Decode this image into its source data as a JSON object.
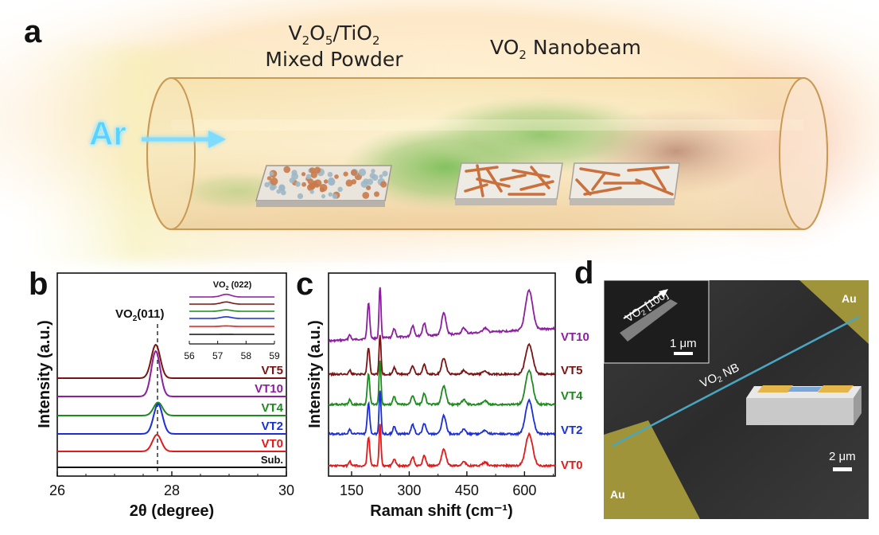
{
  "panel_a": {
    "letter": "a",
    "powder_label_line1_main": "V",
    "powder_label_line1_sub1": "2",
    "powder_label_line1_mid": "O",
    "powder_label_line1_sub2": "5",
    "powder_label_line1_tail": "/TiO",
    "powder_label_line1_sub3": "2",
    "powder_label_line2": "Mixed Powder",
    "nanobeam_label_main": "VO",
    "nanobeam_label_sub": "2",
    "nanobeam_label_tail": " Nanobeam",
    "gas_label": "Ar"
  },
  "panel_d": {
    "letter": "d",
    "au_top": "Au",
    "au_bottom": "Au",
    "nb_label_main": "VO",
    "nb_label_sub": "2",
    "nb_label_tail": " NB",
    "inset_dir_main": "VO",
    "inset_dir_sub": "2",
    "inset_dir_tail": " [100]",
    "inset_scale": "1 μm",
    "main_scale": "2 μm"
  },
  "colors": {
    "VT10": "#8b1f9e",
    "VT5": "#7a1414",
    "VT4": "#1f8a1f",
    "VT2": "#1c2fd6",
    "VT0": "#e01b1b",
    "Sub": "#111111"
  },
  "chart_data": [
    {
      "panel": "b",
      "letter": "b",
      "type": "line",
      "xlabel": "2θ (degree)",
      "ylabel": "Intensity (a.u.)",
      "xlim": [
        26,
        30
      ],
      "xticks": [
        "26",
        "28",
        "30"
      ],
      "annotation_main": "VO",
      "annotation_sub": "2",
      "annotation_tail": "(011)",
      "annotation_x": 27.75,
      "peak_center": 27.75,
      "series": [
        {
          "name": "VT10",
          "peak_height": 1.9,
          "center": 27.72
        },
        {
          "name": "VT5",
          "peak_height": 1.4,
          "center": 27.72
        },
        {
          "name": "VT4",
          "peak_height": 0.55,
          "center": 27.76
        },
        {
          "name": "VT2",
          "peak_height": 1.25,
          "center": 27.76
        },
        {
          "name": "VT0",
          "peak_height": 0.7,
          "center": 27.74
        },
        {
          "name": "Sub.",
          "peak_height": 0,
          "center": 27.75
        }
      ],
      "inset": {
        "title_main": "VO",
        "title_sub": "2",
        "title_tail": " (022)",
        "xlim": [
          56,
          59
        ],
        "xticks": [
          "56",
          "57",
          "58",
          "59"
        ],
        "peak_center": 57.3,
        "peak_heights": [
          0.55,
          0.45,
          0.3,
          0.35,
          0.1,
          0.02
        ]
      }
    },
    {
      "panel": "c",
      "letter": "c",
      "type": "line",
      "xlabel": "Raman shift (cm⁻¹)",
      "ylabel": "Intensity (a.u.)",
      "xlim": [
        90,
        680
      ],
      "xticks": [
        "150",
        "300",
        "450",
        "600"
      ],
      "peaks": [
        {
          "x": 145,
          "w": 4,
          "rel": 0.15
        },
        {
          "x": 194,
          "w": 4.5,
          "rel": 1.0
        },
        {
          "x": 224,
          "w": 3.5,
          "rel": 1.45
        },
        {
          "x": 261,
          "w": 5,
          "rel": 0.25
        },
        {
          "x": 309,
          "w": 6,
          "rel": 0.3
        },
        {
          "x": 339,
          "w": 6,
          "rel": 0.35
        },
        {
          "x": 390,
          "w": 8,
          "rel": 0.6
        },
        {
          "x": 442,
          "w": 7,
          "rel": 0.15
        },
        {
          "x": 497,
          "w": 8,
          "rel": 0.12
        },
        {
          "x": 612,
          "w": 13,
          "rel": 1.1
        }
      ],
      "series": [
        {
          "name": "VT10",
          "scale": 1.0
        },
        {
          "name": "VT5",
          "scale": 0.75
        },
        {
          "name": "VT4",
          "scale": 0.85
        },
        {
          "name": "VT2",
          "scale": 0.85
        },
        {
          "name": "VT0",
          "scale": 0.8
        }
      ]
    }
  ]
}
